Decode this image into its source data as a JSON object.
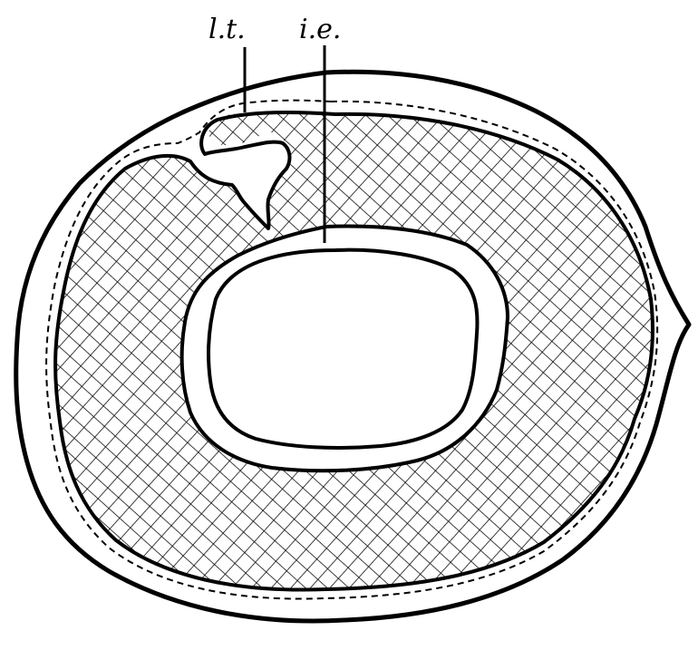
{
  "figure": {
    "labels": {
      "lt": "l.t.",
      "ie": "i.e."
    },
    "colors": {
      "ink": "#000000",
      "paper": "#ffffff"
    }
  }
}
